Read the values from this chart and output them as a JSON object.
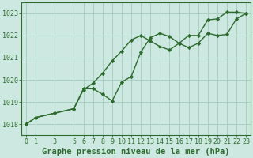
{
  "line1_x": [
    0,
    1,
    3,
    5,
    6,
    7,
    8,
    9,
    10,
    11,
    12,
    13,
    14,
    15,
    16,
    17,
    18,
    19,
    20,
    21,
    22,
    23
  ],
  "line1_y": [
    1018.0,
    1018.3,
    1018.5,
    1018.7,
    1019.6,
    1019.6,
    1019.35,
    1019.05,
    1019.9,
    1020.15,
    1021.25,
    1021.9,
    1022.1,
    1021.95,
    1021.65,
    1021.45,
    1021.65,
    1022.1,
    1022.0,
    1022.05,
    1022.75,
    1023.0
  ],
  "line2_x": [
    0,
    1,
    3,
    5,
    6,
    7,
    8,
    9,
    10,
    11,
    12,
    13,
    14,
    15,
    16,
    17,
    18,
    19,
    20,
    21,
    22,
    23
  ],
  "line2_y": [
    1018.0,
    1018.3,
    1018.5,
    1018.7,
    1019.55,
    1019.85,
    1020.3,
    1020.85,
    1021.3,
    1021.8,
    1022.0,
    1021.75,
    1021.5,
    1021.35,
    1021.65,
    1022.0,
    1022.0,
    1022.7,
    1022.75,
    1023.05,
    1023.05,
    1023.0
  ],
  "line_color": "#2d6a2d",
  "bg_color": "#cce8e0",
  "grid_color": "#a8cfc0",
  "xlabel": "Graphe pression niveau de la mer (hPa)",
  "ylim": [
    1017.5,
    1023.5
  ],
  "xlim": [
    -0.5,
    23.5
  ],
  "yticks": [
    1018,
    1019,
    1020,
    1021,
    1022,
    1023
  ],
  "xticks": [
    0,
    1,
    3,
    5,
    6,
    7,
    8,
    9,
    10,
    11,
    12,
    13,
    14,
    15,
    16,
    17,
    18,
    19,
    20,
    21,
    22,
    23
  ],
  "xlabel_fontsize": 7.5,
  "tick_fontsize": 6,
  "line_width": 1.0,
  "marker": "D",
  "marker_size": 2.2
}
